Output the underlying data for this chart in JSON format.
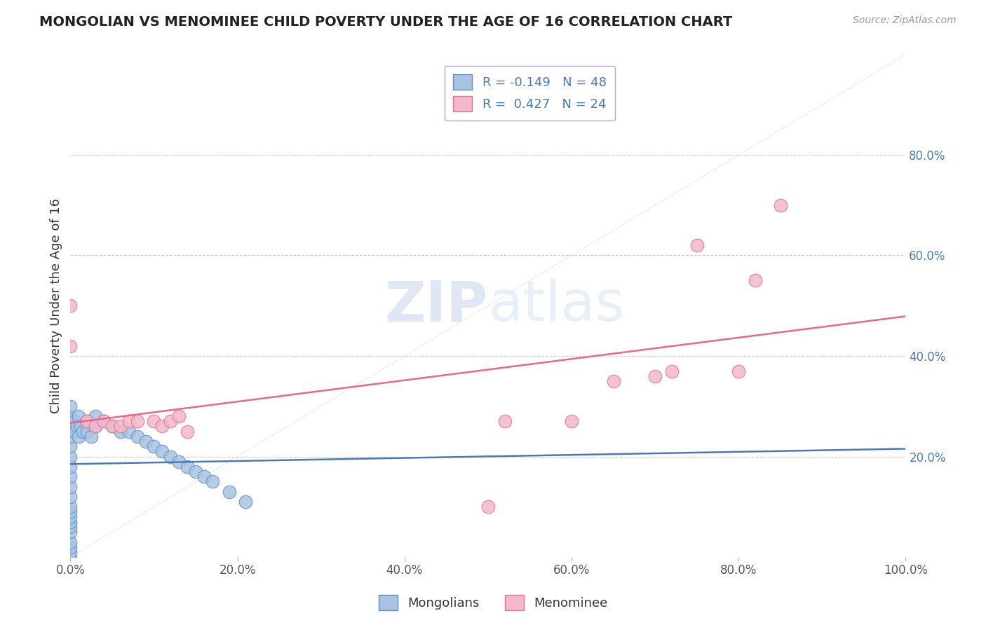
{
  "title": "MONGOLIAN VS MENOMINEE CHILD POVERTY UNDER THE AGE OF 16 CORRELATION CHART",
  "source": "Source: ZipAtlas.com",
  "ylabel": "Child Poverty Under the Age of 16",
  "legend1_label": "R = -0.149   N = 48",
  "legend2_label": "R =  0.427   N = 24",
  "mongolian_fill": "#a8c4e0",
  "menominee_fill": "#f4b8c8",
  "mongolian_edge": "#5b8fc9",
  "menominee_edge": "#e07090",
  "mongolian_line": "#4a7ab5",
  "menominee_line": "#e8688a",
  "background_color": "#ffffff",
  "grid_color": "#cccccc",
  "right_tick_color": "#4a7ab5",
  "xlim": [
    0.0,
    1.0
  ],
  "ylim": [
    0.0,
    1.0
  ],
  "x_ticks": [
    0.0,
    0.2,
    0.4,
    0.6,
    0.8,
    1.0
  ],
  "y_ticks_right": [
    0.2,
    0.4,
    0.6,
    0.8
  ],
  "mon_x": [
    0.0,
    0.0,
    0.0,
    0.0,
    0.0,
    0.0,
    0.0,
    0.0,
    0.0,
    0.0,
    0.0,
    0.0,
    0.0,
    0.0,
    0.0,
    0.0,
    0.0,
    0.0,
    0.0,
    0.0,
    0.005,
    0.005,
    0.008,
    0.01,
    0.01,
    0.012,
    0.015,
    0.02,
    0.02,
    0.025,
    0.03,
    0.03,
    0.04,
    0.05,
    0.06,
    0.07,
    0.08,
    0.09,
    0.1,
    0.11,
    0.12,
    0.13,
    0.14,
    0.15,
    0.16,
    0.17,
    0.19,
    0.21
  ],
  "mon_y": [
    0.0,
    0.01,
    0.02,
    0.03,
    0.05,
    0.06,
    0.07,
    0.08,
    0.09,
    0.1,
    0.12,
    0.14,
    0.16,
    0.18,
    0.2,
    0.22,
    0.24,
    0.26,
    0.28,
    0.3,
    0.25,
    0.27,
    0.26,
    0.24,
    0.28,
    0.26,
    0.25,
    0.25,
    0.27,
    0.24,
    0.26,
    0.28,
    0.27,
    0.26,
    0.25,
    0.25,
    0.24,
    0.23,
    0.22,
    0.21,
    0.2,
    0.19,
    0.18,
    0.17,
    0.16,
    0.15,
    0.13,
    0.11
  ],
  "men_x": [
    0.0,
    0.0,
    0.02,
    0.03,
    0.04,
    0.05,
    0.06,
    0.07,
    0.08,
    0.1,
    0.11,
    0.12,
    0.13,
    0.14,
    0.5,
    0.52,
    0.6,
    0.65,
    0.7,
    0.72,
    0.75,
    0.8,
    0.82,
    0.85
  ],
  "men_y": [
    0.5,
    0.42,
    0.27,
    0.26,
    0.27,
    0.26,
    0.26,
    0.27,
    0.27,
    0.27,
    0.26,
    0.27,
    0.28,
    0.25,
    0.1,
    0.27,
    0.27,
    0.35,
    0.36,
    0.37,
    0.62,
    0.37,
    0.55,
    0.7
  ],
  "watermark_color": "#c8d8ec"
}
